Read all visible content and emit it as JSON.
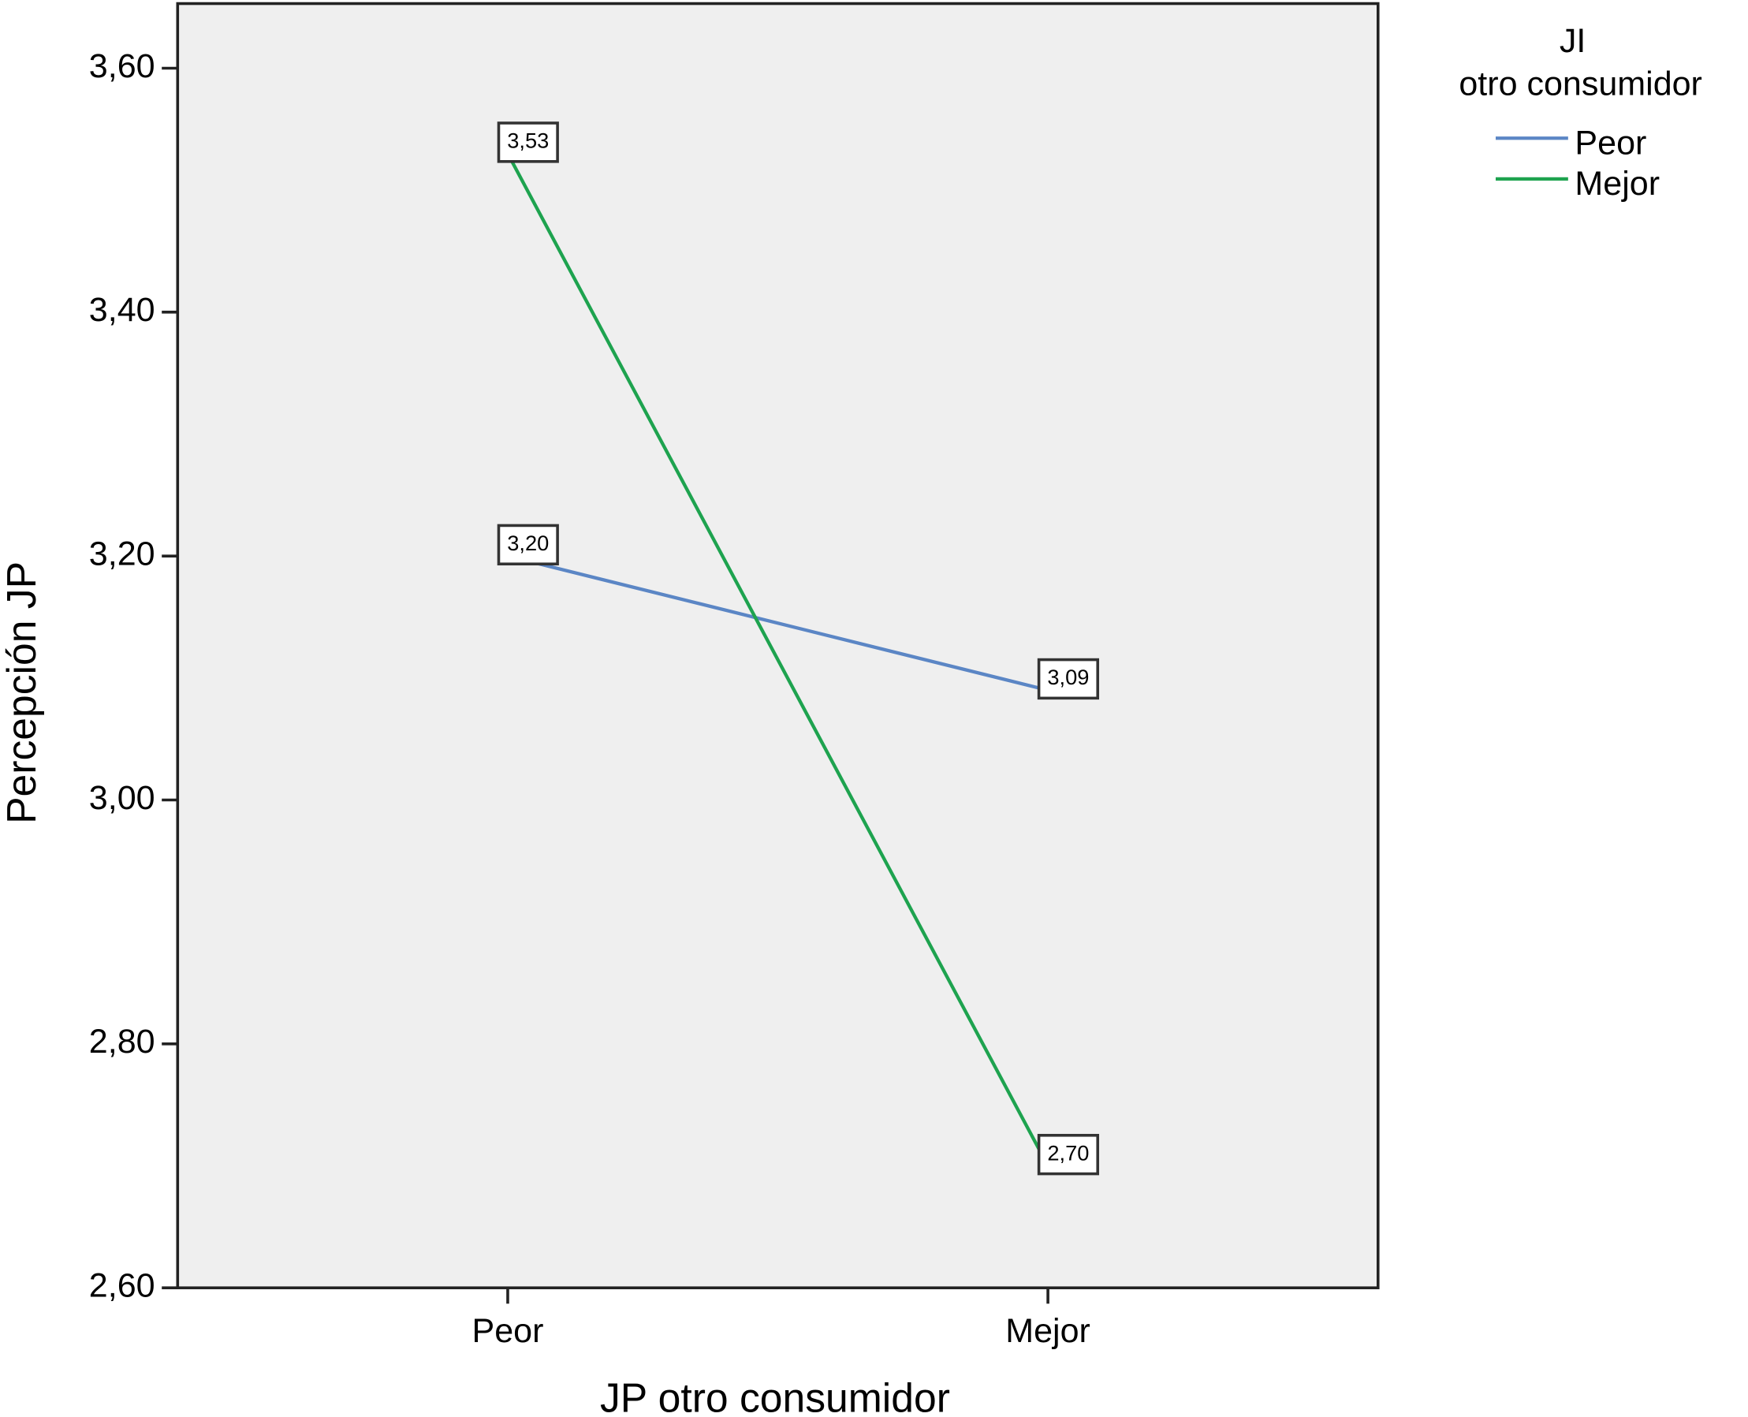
{
  "chart_data": {
    "type": "line",
    "x_label": "JP otro consumidor",
    "y_label": "Percepción JP",
    "legend_title": [
      "JI",
      "otro consumidor"
    ],
    "legend_position": "right",
    "categories": [
      "Peor",
      "Mejor"
    ],
    "series": [
      {
        "name": "Peor",
        "color": "#5b86c5",
        "values": [
          3.2,
          3.09
        ],
        "value_labels": [
          "3,20",
          "3,09"
        ]
      },
      {
        "name": "Mejor",
        "color": "#1ea34f",
        "values": [
          3.53,
          2.7
        ],
        "value_labels": [
          "3,53",
          "2,70"
        ]
      }
    ],
    "ylim": [
      2.6,
      3.653
    ],
    "yticks": [
      {
        "value": 2.6,
        "label": "2,60"
      },
      {
        "value": 2.8,
        "label": "2,80"
      },
      {
        "value": 3.0,
        "label": "3,00"
      },
      {
        "value": 3.2,
        "label": "3,20"
      },
      {
        "value": 3.4,
        "label": "3,40"
      },
      {
        "value": 3.6,
        "label": "3,60"
      }
    ],
    "background": "#efefef"
  }
}
